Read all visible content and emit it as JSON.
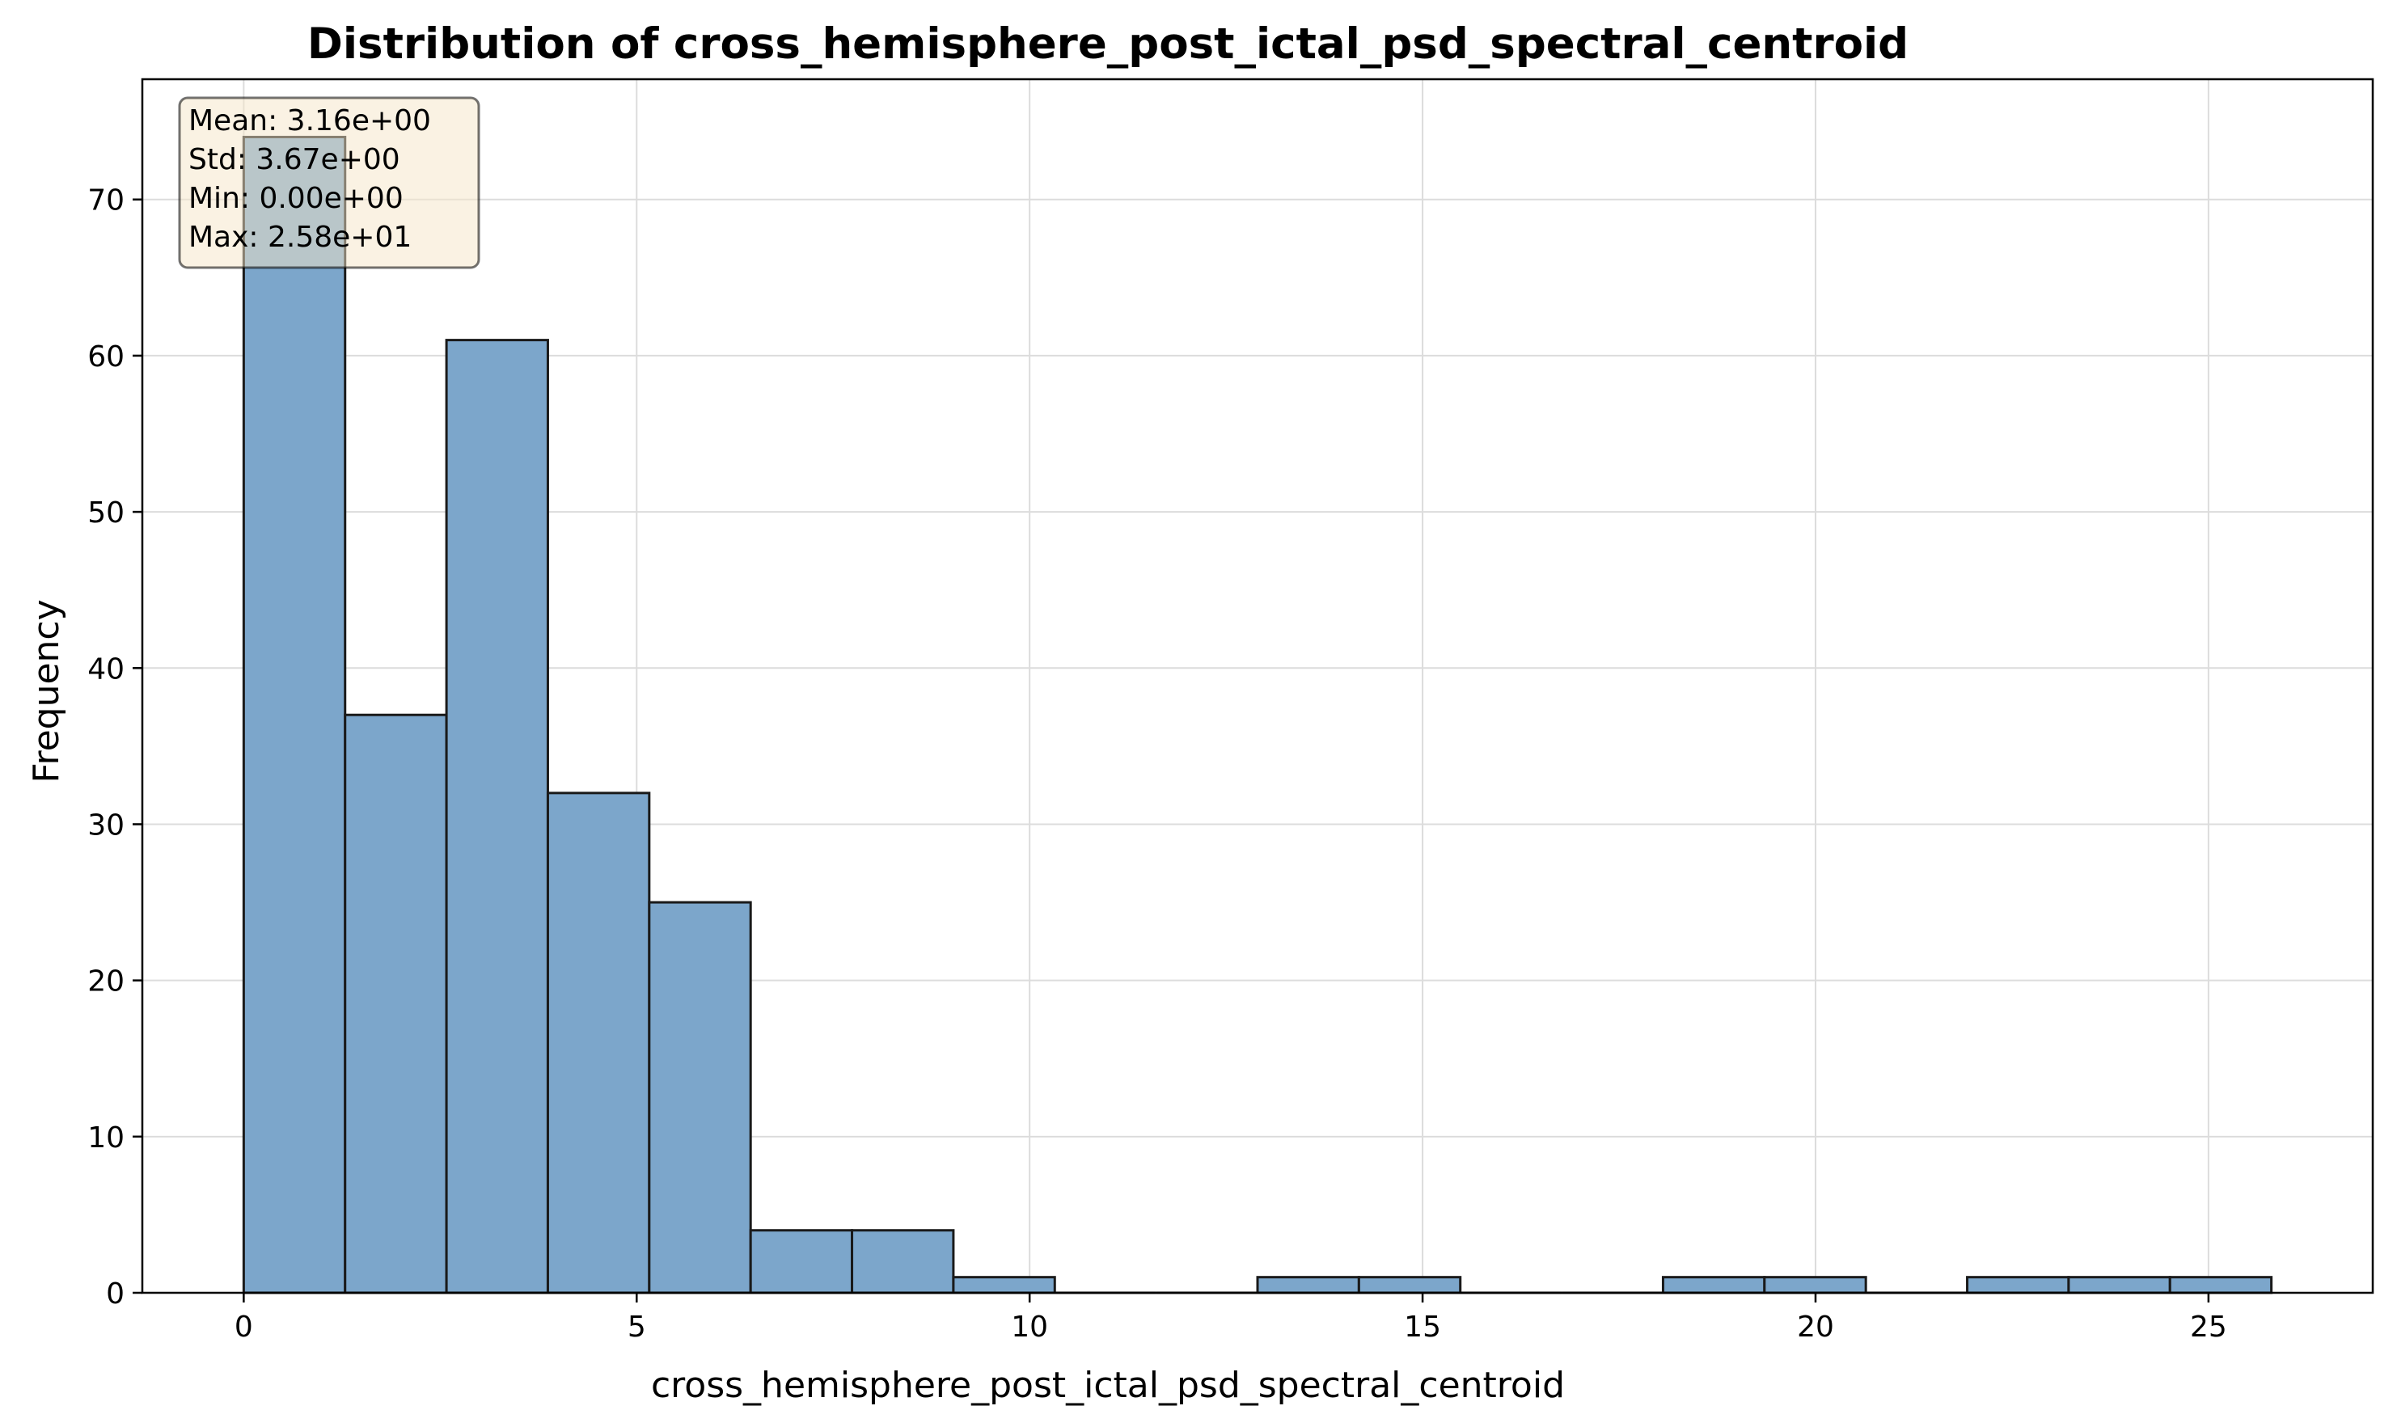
{
  "chart_data": {
    "type": "bar",
    "title": "Distribution of cross_hemisphere_post_ictal_psd_spectral_centroid",
    "xlabel": "cross_hemisphere_post_ictal_psd_spectral_centroid",
    "ylabel": "Frequency",
    "xlim": [
      -1.29,
      27.09
    ],
    "ylim": [
      0,
      77.7
    ],
    "xticks": [
      0,
      5,
      10,
      15,
      20,
      25
    ],
    "yticks": [
      0,
      10,
      20,
      30,
      40,
      50,
      60,
      70
    ],
    "grid": true,
    "bin_edges": [
      0,
      1.29,
      2.58,
      3.87,
      5.16,
      6.45,
      7.74,
      9.03,
      10.32,
      11.61,
      12.9,
      14.19,
      15.48,
      16.77,
      18.06,
      19.35,
      20.64,
      21.93,
      23.22,
      24.51,
      25.8
    ],
    "values": [
      74,
      37,
      61,
      32,
      25,
      4,
      4,
      1,
      0,
      0,
      1,
      1,
      0,
      0,
      1,
      1,
      0,
      1,
      1,
      1
    ],
    "bar_color": "#7ca6cb",
    "edge_color": "#1a1a1a",
    "stats_box": {
      "lines": [
        "Mean: 3.16e+00",
        "Std: 3.67e+00",
        "Min: 0.00e+00",
        "Max: 2.58e+01"
      ],
      "placement": "top-left",
      "background": "#f5e6c8"
    }
  }
}
